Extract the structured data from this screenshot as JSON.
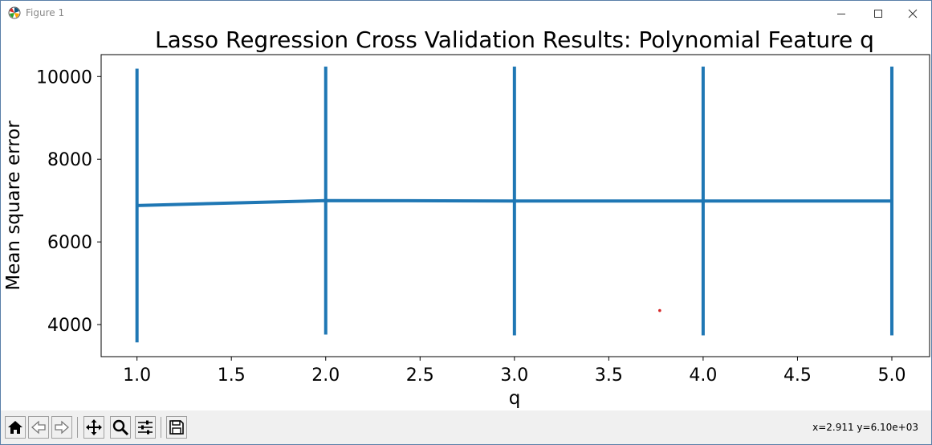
{
  "window": {
    "title": "Figure 1",
    "controls": {
      "minimize_icon": "minimize-icon",
      "maximize_icon": "maximize-icon",
      "close_icon": "close-icon"
    }
  },
  "toolbar": {
    "buttons": [
      "home-icon",
      "back-icon",
      "forward-icon",
      "pan-icon",
      "zoom-icon",
      "configure-subplots-icon",
      "save-icon"
    ],
    "coords": "x=2.911 y=6.10e+03"
  },
  "chart_data": {
    "type": "line",
    "title": "Lasso Regression Cross Validation Results: Polynomial Feature q",
    "xlabel": "q",
    "ylabel": "Mean square error",
    "xlim": [
      0.81,
      5.2
    ],
    "ylim": [
      3225,
      10530
    ],
    "xticks": [
      "1.0",
      "1.5",
      "2.0",
      "2.5",
      "3.0",
      "3.5",
      "4.0",
      "4.5",
      "5.0"
    ],
    "yticks": [
      "4000",
      "6000",
      "8000",
      "10000"
    ],
    "grid": false,
    "color": "#1f77b4",
    "series": [
      {
        "x": [
          1,
          2,
          3,
          4,
          5
        ],
        "y": [
          6880,
          7000,
          6990,
          6990,
          6990
        ],
        "yerr": [
          3310,
          3240,
          3250,
          3250,
          3250
        ]
      }
    ],
    "marker_point": {
      "x": 3.77,
      "y": 4340,
      "color": "#d62728"
    }
  }
}
